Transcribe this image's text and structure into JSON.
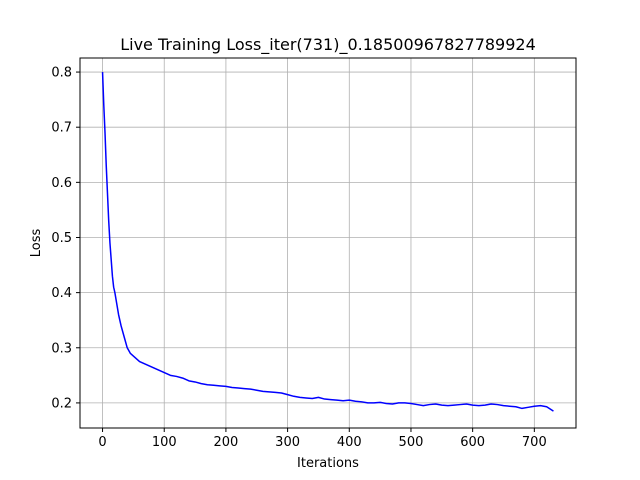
{
  "chart_data": {
    "type": "line",
    "title": "Live Training Loss_iter(731)_0.18500967827789924",
    "xlabel": "Iterations",
    "ylabel": "Loss",
    "xlim": [
      -36.55,
      767.55
    ],
    "ylim": [
      0.1545,
      0.8255
    ],
    "xticks": [
      0,
      100,
      200,
      300,
      400,
      500,
      600,
      700
    ],
    "yticks": [
      0.2,
      0.3,
      0.4,
      0.5,
      0.6,
      0.7,
      0.8
    ],
    "grid": true,
    "legend": "none",
    "series": [
      {
        "color": "#0000ff",
        "x": [
          0,
          2,
          4,
          6,
          8,
          10,
          12,
          14,
          16,
          18,
          20,
          23,
          26,
          30,
          35,
          40,
          45,
          50,
          55,
          60,
          70,
          80,
          90,
          100,
          110,
          120,
          130,
          140,
          150,
          160,
          170,
          180,
          190,
          200,
          210,
          220,
          230,
          240,
          250,
          260,
          270,
          280,
          290,
          300,
          310,
          320,
          330,
          340,
          350,
          360,
          370,
          380,
          390,
          400,
          410,
          420,
          430,
          440,
          450,
          460,
          470,
          480,
          490,
          500,
          510,
          520,
          530,
          540,
          550,
          560,
          570,
          580,
          590,
          600,
          610,
          620,
          630,
          640,
          650,
          660,
          670,
          680,
          690,
          700,
          710,
          720,
          731
        ],
        "y": [
          0.8,
          0.74,
          0.69,
          0.63,
          0.58,
          0.53,
          0.49,
          0.46,
          0.43,
          0.41,
          0.4,
          0.38,
          0.36,
          0.34,
          0.32,
          0.3,
          0.29,
          0.285,
          0.28,
          0.275,
          0.27,
          0.265,
          0.26,
          0.255,
          0.25,
          0.248,
          0.245,
          0.24,
          0.238,
          0.235,
          0.233,
          0.232,
          0.231,
          0.23,
          0.228,
          0.227,
          0.226,
          0.225,
          0.223,
          0.221,
          0.22,
          0.219,
          0.218,
          0.215,
          0.212,
          0.21,
          0.209,
          0.208,
          0.21,
          0.207,
          0.206,
          0.205,
          0.204,
          0.205,
          0.203,
          0.202,
          0.2,
          0.2,
          0.201,
          0.199,
          0.198,
          0.2,
          0.2,
          0.199,
          0.197,
          0.195,
          0.197,
          0.198,
          0.196,
          0.195,
          0.196,
          0.197,
          0.198,
          0.196,
          0.195,
          0.196,
          0.198,
          0.197,
          0.195,
          0.194,
          0.193,
          0.19,
          0.192,
          0.194,
          0.195,
          0.193,
          0.185
        ]
      }
    ]
  }
}
